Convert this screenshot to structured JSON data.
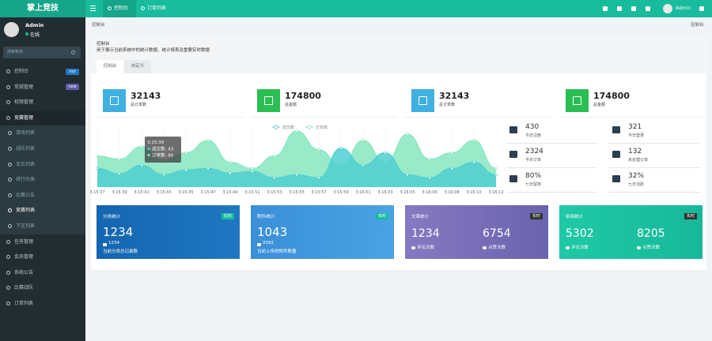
{
  "header": {
    "logo": "掌上竞技",
    "tabs": [
      "控制台",
      "订单列表"
    ],
    "user": "Admin"
  },
  "sidebar": {
    "user": {
      "name": "Admin",
      "status": "在线"
    },
    "search_placeholder": "搜索菜单",
    "menu": [
      {
        "label": "控制台",
        "badge": "hot"
      },
      {
        "label": "常规管理",
        "badge": "new"
      },
      {
        "label": "权限管理"
      },
      {
        "label": "竞赛管理",
        "children": [
          "游戏列表",
          "战队列表",
          "车位列表",
          "排行分类",
          "比赛公告",
          "竞赛列表",
          "下注列表"
        ]
      },
      {
        "label": "任务管理"
      },
      {
        "label": "会员管理"
      },
      {
        "label": "系统公告"
      },
      {
        "label": "比赛战队"
      },
      {
        "label": "订单列表"
      }
    ]
  },
  "breadcrumb": {
    "left": "控制台",
    "right": "控制台"
  },
  "panel": {
    "title": "控制台",
    "description": "用于展示当前系统中的统计数据、统计报表及重要实时数据",
    "tabs": [
      "控制台",
      "自定义"
    ]
  },
  "stats": [
    {
      "value": 32143,
      "label": "总订单数"
    },
    {
      "value": 174800,
      "label": "总金额"
    },
    {
      "value": 32143,
      "label": "总订单数"
    },
    {
      "value": 174800,
      "label": "总金额"
    }
  ],
  "chart": {
    "type": "line",
    "categories": [
      "3:15:37",
      "3:15:39",
      "3:15:41",
      "3:15:43",
      "3:15:45",
      "3:15:47",
      "3:15:49",
      "3:15:51",
      "3:15:53",
      "3:15:55",
      "3:15:57",
      "3:15:59",
      "3:16:01",
      "3:16:03",
      "3:16:05",
      "3:16:06",
      "3:16:08",
      "3:16:10",
      "3:16:12"
    ],
    "series": [
      {
        "name": "成交数",
        "color": "#4fcfd0",
        "values": [
          60,
          43,
          70,
          40,
          55,
          60,
          45,
          50,
          30,
          40,
          30,
          125,
          70,
          110,
          40,
          30,
          60,
          80,
          40
        ]
      },
      {
        "name": "订单数",
        "color": "#86e6bf",
        "values": [
          100,
          90,
          130,
          85,
          110,
          150,
          80,
          60,
          100,
          180,
          120,
          70,
          150,
          80,
          170,
          90,
          110,
          150,
          60
        ]
      }
    ],
    "ylim": [
      0,
      200
    ],
    "tooltip": {
      "title": "3:15:39",
      "lines": [
        "成交数: 43",
        "订单数: 90"
      ]
    }
  },
  "side_stats": [
    {
      "value": 430,
      "label": "今日注册"
    },
    {
      "value": 321,
      "label": "今日登录"
    },
    {
      "value": 2324,
      "label": "今日订单"
    },
    {
      "value": 132,
      "label": "未处理订单"
    },
    {
      "value": "80%",
      "label": "七日留存"
    },
    {
      "value": "32%",
      "label": "七日活跃"
    }
  ],
  "cards": [
    {
      "title": "分类统计",
      "tag": "实时",
      "value": 1234,
      "sub_value": 1234,
      "note": "当前分类总记录数"
    },
    {
      "title": "附件统计",
      "tag": "实时",
      "value": 1043,
      "sub_value": 2592,
      "note": "当前上传的附件数量"
    },
    {
      "title": "文章统计",
      "tag": "实时",
      "metrics": [
        {
          "value": 1234,
          "label": "评论次数"
        },
        {
          "value": 6754,
          "label": "点赞次数"
        }
      ]
    },
    {
      "title": "新闻统计",
      "tag": "实时",
      "metrics": [
        {
          "value": 5302,
          "label": "评论次数"
        },
        {
          "value": 8205,
          "label": "点赞次数"
        }
      ]
    }
  ]
}
